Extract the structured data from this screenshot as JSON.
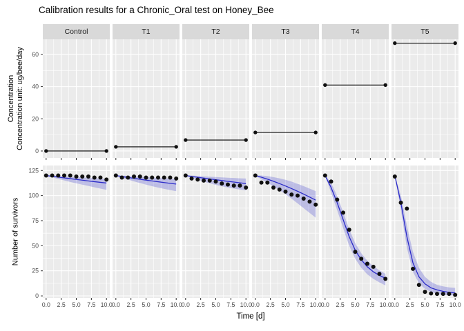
{
  "title": "Calibration results for a Chronic_Oral test on Honey_Bee",
  "axes": {
    "x_title": "Time [d]",
    "x_tick_values": [
      0,
      2.5,
      5,
      7.5,
      10
    ],
    "x_tick_labels": [
      "0.0",
      "2.5",
      "5.0",
      "7.5",
      "10.0"
    ],
    "x_minor": [
      1.25,
      3.75,
      6.25,
      8.75
    ],
    "top_y_title_line1": "Concentration",
    "top_y_title_line2": "Concentration unit: ug/bee/day",
    "top_y_tick_values": [
      0,
      20,
      40,
      60
    ],
    "top_y_minor": [
      10,
      30,
      50
    ],
    "bottom_y_title": "Number of survivors",
    "bottom_y_tick_values": [
      0,
      25,
      50,
      75,
      100,
      125
    ],
    "bottom_y_minor": [
      12.5,
      37.5,
      62.5,
      87.5,
      112.5
    ]
  },
  "colors": {
    "panel_bg": "#ebebeb",
    "strip_bg": "#d9d9d9",
    "strip_text": "#1a1a1a",
    "grid": "#ffffff",
    "tick": "#333333",
    "tick_label": "#4d4d4d",
    "point": "#101010",
    "fit_line": "#2a2ac8",
    "band_fill": "#4646d2",
    "band_opacity": 0.28,
    "concentration_line": "#000000"
  },
  "chart_data": {
    "type": "line",
    "title": "Calibration results for a Chronic_Oral test on Honey_Bee",
    "xlabel": "Time [d]",
    "xlim": [
      -0.55,
      10.55
    ],
    "x": [
      0,
      1,
      2,
      3,
      4,
      5,
      6,
      7,
      8,
      9,
      10
    ],
    "top_row": {
      "ylabel": "Concentration / Concentration unit: ug/bee/day",
      "ylim": [
        -4.3,
        69.4
      ],
      "yticks": [
        0,
        20,
        40,
        60
      ]
    },
    "bottom_row": {
      "ylabel": "Number of survivors",
      "ylim": [
        -2,
        130
      ],
      "yticks": [
        0,
        25,
        50,
        75,
        100,
        125
      ]
    },
    "facets": [
      {
        "label": "Control",
        "concentration": 0,
        "survivors_observed": [
          120,
          120,
          120,
          120,
          120,
          119,
          119,
          119,
          118,
          118,
          116
        ],
        "survivors_fit": [
          120,
          119.2,
          118.4,
          117.6,
          116.9,
          116.1,
          115.4,
          114.6,
          113.9,
          113.2,
          112.5
        ],
        "fit_upper": [
          120,
          120,
          119.6,
          119.2,
          118.8,
          118.4,
          118.1,
          117.7,
          117.4,
          117,
          116.7
        ],
        "fit_lower": [
          120,
          118.2,
          116.6,
          115.1,
          113.6,
          112.2,
          110.9,
          109.6,
          108.3,
          107,
          105.8
        ]
      },
      {
        "label": "T1",
        "concentration": 2.6,
        "survivors_observed": [
          120,
          118,
          118,
          119,
          119,
          118,
          118,
          118,
          118,
          118,
          117
        ],
        "survivors_fit": [
          120,
          119,
          118.1,
          117.2,
          116.3,
          115.4,
          114.6,
          113.8,
          113,
          112.2,
          111.5
        ],
        "fit_upper": [
          120,
          120,
          119.5,
          119.1,
          118.7,
          118.3,
          118,
          117.6,
          117.3,
          117,
          116.7
        ],
        "fit_lower": [
          120,
          117.9,
          116,
          114.2,
          112.5,
          110.9,
          109.4,
          108,
          106.7,
          105.5,
          104.4
        ]
      },
      {
        "label": "T2",
        "concentration": 6.8,
        "survivors_observed": [
          120,
          117,
          116,
          115,
          115,
          114,
          112,
          111,
          110,
          110,
          108
        ],
        "survivors_fit": [
          120,
          119.1,
          118.2,
          117.4,
          116.6,
          115.8,
          115,
          114.2,
          113.5,
          112.7,
          112
        ],
        "fit_upper": [
          120,
          120,
          119.6,
          119.2,
          118.8,
          118.5,
          118.1,
          117.8,
          117.5,
          117.2,
          117
        ],
        "fit_lower": [
          120,
          117.7,
          115.7,
          113.9,
          112.2,
          110.7,
          109.3,
          108.1,
          107,
          106,
          105.2
        ]
      },
      {
        "label": "T3",
        "concentration": 11.5,
        "survivors_observed": [
          120,
          113,
          113,
          108,
          106,
          104,
          101,
          100,
          97,
          94,
          91
        ],
        "survivors_fit": [
          120,
          118.3,
          116.4,
          114.3,
          112,
          109.6,
          107,
          104.3,
          101.5,
          98.5,
          95.5
        ],
        "fit_upper": [
          120,
          120,
          119.4,
          118.4,
          117.2,
          115.7,
          113.9,
          111.8,
          109.5,
          107,
          104.5
        ],
        "fit_lower": [
          120,
          116.2,
          112.8,
          109.2,
          105.4,
          101.3,
          96.9,
          92.3,
          87.5,
          82.7,
          78
        ]
      },
      {
        "label": "T4",
        "concentration": 41,
        "survivors_observed": [
          120,
          114,
          96,
          83,
          66,
          44,
          37,
          32,
          29,
          22,
          17
        ],
        "survivors_fit": [
          120,
          108,
          93,
          76,
          59,
          45.5,
          36,
          29,
          24,
          20.5,
          17.5
        ],
        "fit_upper": [
          120,
          113,
          99.5,
          83.5,
          66.5,
          52.5,
          42.5,
          35,
          29.5,
          25.5,
          22
        ],
        "fit_lower": [
          120,
          103,
          85.5,
          67.5,
          50,
          37,
          28,
          21.5,
          17,
          13.5,
          10.5
        ]
      },
      {
        "label": "T5",
        "concentration": 67,
        "survivors_observed": [
          119,
          93,
          87,
          27,
          11,
          4,
          2.5,
          2,
          2,
          2,
          1
        ],
        "survivors_fit": [
          120,
          93,
          59,
          33,
          19,
          12,
          8,
          6,
          4.5,
          3.5,
          3
        ],
        "fit_upper": [
          120,
          100,
          70,
          44,
          28,
          19,
          14,
          11,
          9.5,
          8.5,
          8
        ],
        "fit_lower": [
          120,
          86,
          48,
          24,
          12.5,
          7,
          4,
          2,
          1,
          0.5,
          0.5
        ]
      }
    ]
  }
}
